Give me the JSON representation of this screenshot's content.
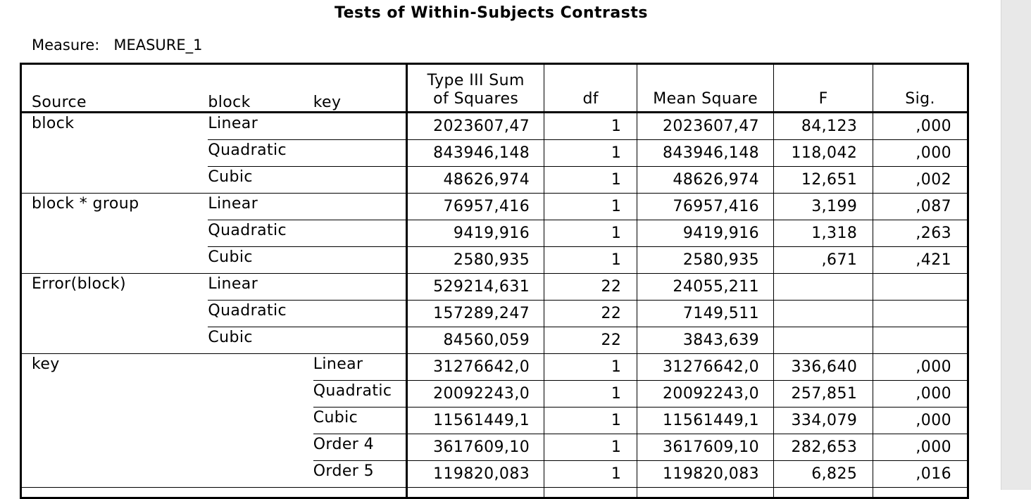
{
  "title": "Tests of Within-Subjects Contrasts",
  "measure": {
    "label": "Measure:",
    "value": "MEASURE_1"
  },
  "headers": {
    "source": "Source",
    "block": "block",
    "key": "key",
    "ss_line1": "Type III Sum",
    "ss_line2": "of Squares",
    "df": "df",
    "ms": "Mean Square",
    "f": "F",
    "sig": "Sig."
  },
  "rows": [
    {
      "source": "block",
      "block": "Linear",
      "key": "",
      "ss": "2023607,47",
      "df": "1",
      "ms": "2023607,47",
      "f": "84,123",
      "sig": ",000"
    },
    {
      "source": "",
      "block": "Quadratic",
      "key": "",
      "ss": "843946,148",
      "df": "1",
      "ms": "843946,148",
      "f": "118,042",
      "sig": ",000"
    },
    {
      "source": "",
      "block": "Cubic",
      "key": "",
      "ss": "48626,974",
      "df": "1",
      "ms": "48626,974",
      "f": "12,651",
      "sig": ",002"
    },
    {
      "source": "block * group",
      "block": "Linear",
      "key": "",
      "ss": "76957,416",
      "df": "1",
      "ms": "76957,416",
      "f": "3,199",
      "sig": ",087"
    },
    {
      "source": "",
      "block": "Quadratic",
      "key": "",
      "ss": "9419,916",
      "df": "1",
      "ms": "9419,916",
      "f": "1,318",
      "sig": ",263"
    },
    {
      "source": "",
      "block": "Cubic",
      "key": "",
      "ss": "2580,935",
      "df": "1",
      "ms": "2580,935",
      "f": ",671",
      "sig": ",421"
    },
    {
      "source": "Error(block)",
      "block": "Linear",
      "key": "",
      "ss": "529214,631",
      "df": "22",
      "ms": "24055,211",
      "f": "",
      "sig": ""
    },
    {
      "source": "",
      "block": "Quadratic",
      "key": "",
      "ss": "157289,247",
      "df": "22",
      "ms": "7149,511",
      "f": "",
      "sig": ""
    },
    {
      "source": "",
      "block": "Cubic",
      "key": "",
      "ss": "84560,059",
      "df": "22",
      "ms": "3843,639",
      "f": "",
      "sig": ""
    },
    {
      "source": "key",
      "block": "",
      "key": "Linear",
      "ss": "31276642,0",
      "df": "1",
      "ms": "31276642,0",
      "f": "336,640",
      "sig": ",000"
    },
    {
      "source": "",
      "block": "",
      "key": "Quadratic",
      "ss": "20092243,0",
      "df": "1",
      "ms": "20092243,0",
      "f": "257,851",
      "sig": ",000"
    },
    {
      "source": "",
      "block": "",
      "key": "Cubic",
      "ss": "11561449,1",
      "df": "1",
      "ms": "11561449,1",
      "f": "334,079",
      "sig": ",000"
    },
    {
      "source": "",
      "block": "",
      "key": "Order 4",
      "ss": "3617609,10",
      "df": "1",
      "ms": "3617609,10",
      "f": "282,653",
      "sig": ",000"
    },
    {
      "source": "",
      "block": "",
      "key": "Order 5",
      "ss": "119820,083",
      "df": "1",
      "ms": "119820,083",
      "f": "6,825",
      "sig": ",016"
    },
    {
      "source": "",
      "block": "",
      "key": "",
      "ss": "",
      "df": "",
      "ms": "",
      "f": "",
      "sig": ""
    }
  ]
}
